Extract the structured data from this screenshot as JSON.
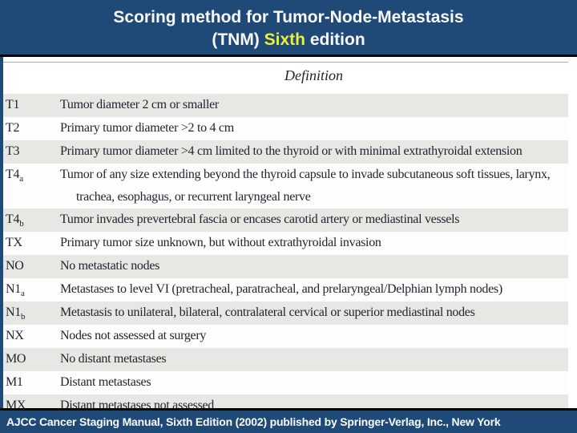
{
  "theme": {
    "bar_blue": "#1F4A78",
    "highlight_yellow": "#EAEF3C",
    "row_shade_gray": "#E7E7E4",
    "rule_black": "#060606"
  },
  "header": {
    "title_line1": "Scoring method for Tumor-Node-Metastasis",
    "title_line2_pre": "(TNM)",
    "title_line2_highlight": "Sixth",
    "title_line2_post": "edition"
  },
  "table": {
    "column_header": "Definition",
    "rows": [
      {
        "code": "T1",
        "sub": "",
        "text": "Tumor diameter 2 cm or smaller",
        "text2": "",
        "shaded": true
      },
      {
        "code": "T2",
        "sub": "",
        "text": "Primary tumor diameter >2 to 4 cm",
        "text2": "",
        "shaded": false
      },
      {
        "code": "T3",
        "sub": "",
        "text": "Primary tumor diameter >4 cm limited to the thyroid or with minimal extrathyroidal extension",
        "text2": "",
        "shaded": true
      },
      {
        "code": "T4",
        "sub": "a",
        "text": "Tumor of any size extending beyond the thyroid capsule to invade subcutaneous soft tissues, larynx, trachea,",
        "text2": "esophagus, or recurrent laryngeal nerve",
        "shaded": false
      },
      {
        "code": "T4",
        "sub": "b",
        "text": "Tumor invades prevertebral fascia or encases carotid artery or mediastinal vessels",
        "text2": "",
        "shaded": true
      },
      {
        "code": "TX",
        "sub": "",
        "text": "Primary tumor size unknown, but without extrathyroidal invasion",
        "text2": "",
        "shaded": false
      },
      {
        "code": "NO",
        "sub": "",
        "text": "No metastatic nodes",
        "text2": "",
        "shaded": true
      },
      {
        "code": "N1",
        "sub": "a",
        "text": "Metastases to level VI (pretracheal, paratracheal, and prelaryngeal/Delphian lymph nodes)",
        "text2": "",
        "shaded": false
      },
      {
        "code": "N1",
        "sub": "b",
        "text": "Metastasis to unilateral, bilateral, contralateral cervical or superior mediastinal nodes",
        "text2": "",
        "shaded": true
      },
      {
        "code": "NX",
        "sub": "",
        "text": "Nodes not assessed at surgery",
        "text2": "",
        "shaded": false
      },
      {
        "code": "MO",
        "sub": "",
        "text": "No distant metastases",
        "text2": "",
        "shaded": true
      },
      {
        "code": "M1",
        "sub": "",
        "text": "Distant metastases",
        "text2": "",
        "shaded": false
      },
      {
        "code": "MX",
        "sub": "",
        "text": "Distant metastases not assessed",
        "text2": "",
        "shaded": true
      }
    ]
  },
  "footer": {
    "citation": "AJCC Cancer Staging Manual, Sixth Edition (2002) published by Springer-Verlag, Inc., New York"
  }
}
